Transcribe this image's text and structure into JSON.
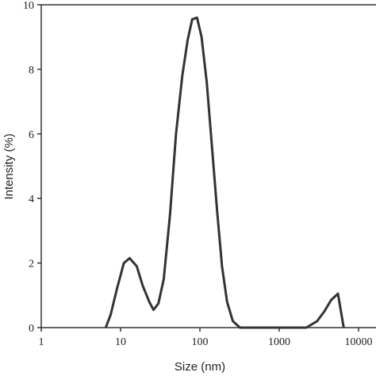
{
  "chart_data": {
    "type": "line",
    "x_label": "Size (nm)",
    "y_label": "Intensity (%)",
    "x": [
      6.5,
      7.5,
      9,
      11,
      13,
      16,
      19,
      23,
      26,
      30,
      35,
      42,
      50,
      60,
      70,
      80,
      92,
      105,
      122,
      142,
      165,
      190,
      220,
      260,
      320,
      2200,
      3000,
      3700,
      4500,
      5500,
      6000,
      6500
    ],
    "series": [
      {
        "color": "#333333",
        "values": [
          0,
          0.4,
          1.2,
          2.0,
          2.15,
          1.9,
          1.3,
          0.8,
          0.55,
          0.75,
          1.5,
          3.5,
          6.0,
          7.8,
          8.9,
          9.55,
          9.6,
          9.0,
          7.6,
          5.6,
          3.6,
          1.9,
          0.8,
          0.2,
          0,
          0,
          0.2,
          0.5,
          0.85,
          1.05,
          0.5,
          0
        ]
      }
    ],
    "xscale": "log",
    "xlim": [
      1,
      10000
    ],
    "xticks": [
      1,
      10,
      100,
      1000,
      10000
    ],
    "ylim": [
      0,
      10
    ],
    "yticks": [
      0,
      2,
      4,
      6,
      8,
      10
    ]
  }
}
